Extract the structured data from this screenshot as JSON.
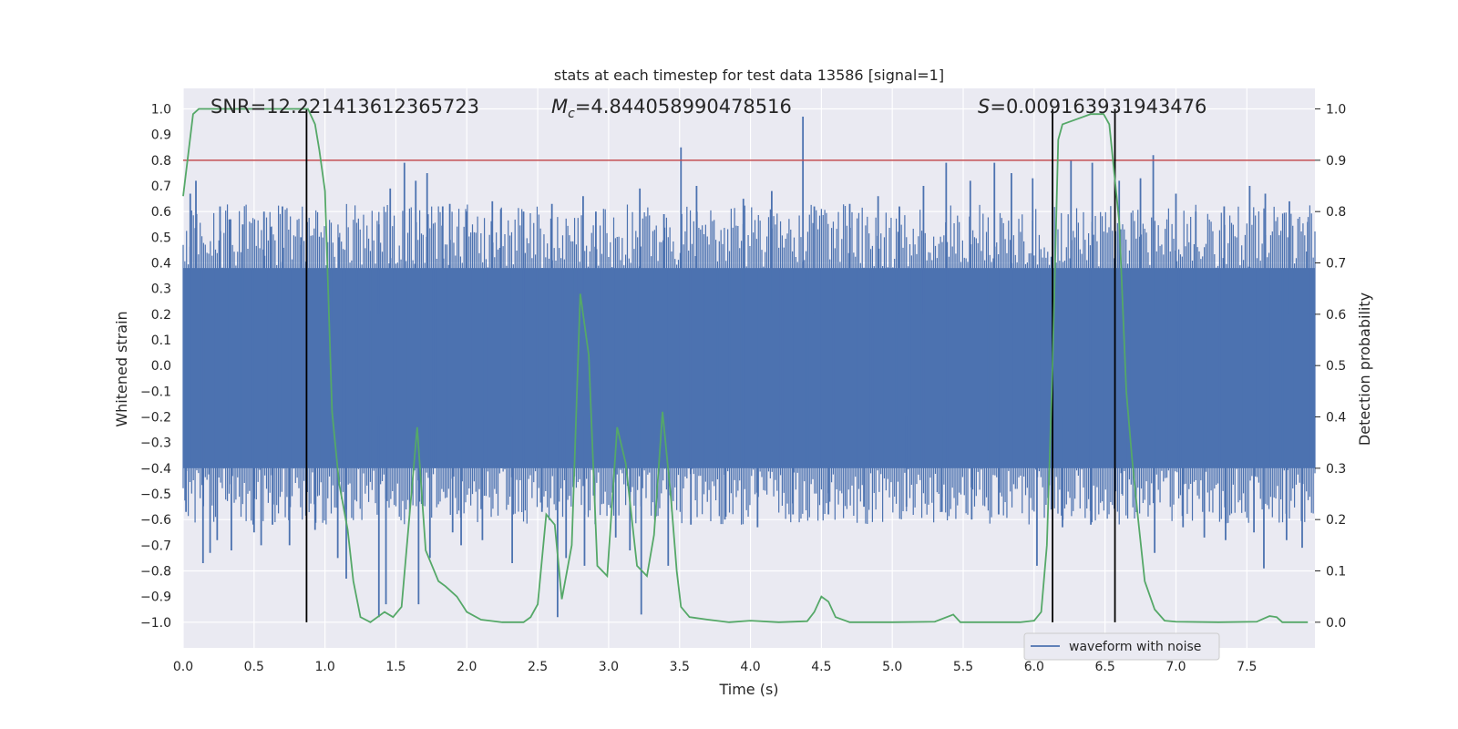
{
  "chart_data": {
    "type": "line",
    "title": "stats at each timestep for test data 13586 [signal=1]",
    "xlabel": "Time (s)",
    "ylabel": "Whitened strain",
    "y2label": "Detection probability",
    "xlim": [
      0.0,
      7.98
    ],
    "ylim": [
      -1.1,
      1.08
    ],
    "y2lim": [
      -0.05,
      1.04
    ],
    "xticks": [
      "0.0",
      "0.5",
      "1.0",
      "1.5",
      "2.0",
      "2.5",
      "3.0",
      "3.5",
      "4.0",
      "4.5",
      "5.0",
      "5.5",
      "6.0",
      "6.5",
      "7.0",
      "7.5"
    ],
    "yticks": [
      "1.0",
      "0.9",
      "0.8",
      "0.7",
      "0.6",
      "0.5",
      "0.4",
      "0.3",
      "0.2",
      "0.1",
      "0.0",
      "-0.1",
      "-0.2",
      "-0.3",
      "-0.4",
      "-0.5",
      "-0.6",
      "-0.7",
      "-0.8",
      "-0.9",
      "-1.0"
    ],
    "y2ticks": [
      "1.0",
      "0.9",
      "0.8",
      "0.7",
      "0.6",
      "0.5",
      "0.4",
      "0.3",
      "0.2",
      "0.1",
      "0.0"
    ],
    "grid": true,
    "legend_position": "lower-right",
    "annotations": {
      "snr": "SNR=12.221413612365723",
      "mc_prefix": "M",
      "mc_sub": "c",
      "mc_value": "=4.844058990478516",
      "s_prefix": "S",
      "s_value": "=0.009163931943476"
    },
    "threshold": {
      "value": 0.9,
      "axis": "right",
      "color": "#c44e52"
    },
    "vertical_lines": [
      0.87,
      6.13,
      6.57
    ],
    "colors": {
      "waveform": "#4c72b0",
      "probability": "#55a868",
      "threshold": "#c44e52",
      "background": "#eaeaf2",
      "vlines": "#000000"
    },
    "series": [
      {
        "name": "waveform with noise",
        "axis": "left",
        "kind": "noise_band",
        "core_envelope": [
          -0.4,
          0.38
        ],
        "spikes_upper": [
          [
            0.05,
            0.67
          ],
          [
            0.09,
            0.72
          ],
          [
            0.26,
            0.62
          ],
          [
            0.33,
            0.57
          ],
          [
            0.42,
            0.55
          ],
          [
            0.57,
            0.6
          ],
          [
            0.62,
            0.54
          ],
          [
            0.7,
            0.62
          ],
          [
            0.83,
            0.5
          ],
          [
            1.1,
            0.5
          ],
          [
            1.38,
            0.55
          ],
          [
            1.46,
            0.69
          ],
          [
            1.56,
            0.79
          ],
          [
            1.64,
            0.72
          ],
          [
            1.72,
            0.75
          ],
          [
            1.83,
            0.62
          ],
          [
            1.88,
            0.63
          ],
          [
            2.0,
            0.6
          ],
          [
            2.18,
            0.64
          ],
          [
            2.24,
            0.61
          ],
          [
            2.4,
            0.6
          ],
          [
            2.6,
            0.63
          ],
          [
            2.82,
            0.66
          ],
          [
            2.91,
            0.6
          ],
          [
            3.22,
            0.69
          ],
          [
            3.39,
            0.59
          ],
          [
            3.51,
            0.85
          ],
          [
            3.62,
            0.7
          ],
          [
            3.95,
            0.65
          ],
          [
            4.15,
            0.68
          ],
          [
            4.37,
            0.97
          ],
          [
            4.45,
            0.62
          ],
          [
            4.7,
            0.63
          ],
          [
            4.9,
            0.66
          ],
          [
            5.05,
            0.62
          ],
          [
            5.22,
            0.7
          ],
          [
            5.38,
            0.79
          ],
          [
            5.55,
            0.72
          ],
          [
            5.72,
            0.79
          ],
          [
            5.84,
            0.75
          ],
          [
            5.99,
            0.73
          ],
          [
            6.13,
            0.78
          ],
          [
            6.26,
            0.8
          ],
          [
            6.41,
            0.79
          ],
          [
            6.6,
            0.72
          ],
          [
            6.75,
            0.73
          ],
          [
            6.84,
            0.82
          ],
          [
            7.0,
            0.67
          ],
          [
            7.14,
            0.6
          ],
          [
            7.34,
            0.62
          ],
          [
            7.52,
            0.7
          ],
          [
            7.63,
            0.67
          ],
          [
            7.8,
            0.64
          ],
          [
            7.93,
            0.56
          ]
        ],
        "spikes_lower": [
          [
            0.02,
            -0.57
          ],
          [
            0.14,
            -0.77
          ],
          [
            0.19,
            -0.73
          ],
          [
            0.24,
            -0.68
          ],
          [
            0.34,
            -0.72
          ],
          [
            0.5,
            -0.65
          ],
          [
            0.55,
            -0.7
          ],
          [
            0.63,
            -0.62
          ],
          [
            0.75,
            -0.7
          ],
          [
            0.93,
            -0.64
          ],
          [
            1.09,
            -0.75
          ],
          [
            1.15,
            -0.83
          ],
          [
            1.38,
            -0.98
          ],
          [
            1.43,
            -0.93
          ],
          [
            1.66,
            -0.93
          ],
          [
            1.74,
            -0.75
          ],
          [
            1.9,
            -0.65
          ],
          [
            1.96,
            -0.7
          ],
          [
            2.11,
            -0.68
          ],
          [
            2.32,
            -0.77
          ],
          [
            2.53,
            -0.57
          ],
          [
            2.64,
            -0.98
          ],
          [
            2.7,
            -0.75
          ],
          [
            2.83,
            -0.78
          ],
          [
            3.05,
            -0.67
          ],
          [
            3.15,
            -0.72
          ],
          [
            3.23,
            -0.97
          ],
          [
            3.42,
            -0.78
          ],
          [
            3.58,
            -0.62
          ],
          [
            3.82,
            -0.6
          ],
          [
            4.05,
            -0.63
          ],
          [
            4.3,
            -0.58
          ],
          [
            4.55,
            -0.58
          ],
          [
            4.8,
            -0.55
          ],
          [
            5.1,
            -0.55
          ],
          [
            5.35,
            -0.57
          ],
          [
            5.56,
            -0.6
          ],
          [
            5.75,
            -0.58
          ],
          [
            6.02,
            -0.78
          ],
          [
            6.2,
            -0.63
          ],
          [
            6.4,
            -0.62
          ],
          [
            6.62,
            -0.5
          ],
          [
            6.85,
            -0.73
          ],
          [
            7.05,
            -0.63
          ],
          [
            7.2,
            -0.67
          ],
          [
            7.35,
            -0.68
          ],
          [
            7.55,
            -0.65
          ],
          [
            7.62,
            -0.79
          ],
          [
            7.78,
            -0.68
          ],
          [
            7.89,
            -0.71
          ]
        ]
      },
      {
        "name": "",
        "axis": "right",
        "kind": "line",
        "x": [
          0.0,
          0.07,
          0.11,
          0.88,
          0.93,
          0.96,
          1.0,
          1.05,
          1.1,
          1.16,
          1.2,
          1.25,
          1.32,
          1.42,
          1.48,
          1.54,
          1.65,
          1.71,
          1.8,
          1.85,
          1.93,
          2.0,
          2.1,
          2.25,
          2.4,
          2.45,
          2.5,
          2.56,
          2.62,
          2.67,
          2.74,
          2.8,
          2.86,
          2.92,
          2.99,
          3.06,
          3.12,
          3.2,
          3.27,
          3.32,
          3.38,
          3.44,
          3.48,
          3.51,
          3.57,
          3.7,
          3.85,
          4.0,
          4.2,
          4.4,
          4.45,
          4.5,
          4.55,
          4.6,
          4.7,
          5.0,
          5.3,
          5.43,
          5.48,
          5.6,
          5.9,
          6.0,
          6.05,
          6.09,
          6.13,
          6.17,
          6.2,
          6.3,
          6.4,
          6.49,
          6.53,
          6.6,
          6.65,
          6.69,
          6.73,
          6.78,
          6.85,
          6.92,
          7.0,
          7.3,
          7.57,
          7.61,
          7.66,
          7.71,
          7.75,
          7.93
        ],
        "y": [
          0.83,
          0.99,
          1.0,
          1.0,
          0.97,
          0.92,
          0.84,
          0.41,
          0.27,
          0.18,
          0.08,
          0.01,
          0.0,
          0.02,
          0.01,
          0.03,
          0.38,
          0.14,
          0.08,
          0.07,
          0.05,
          0.02,
          0.005,
          0.0,
          0.0,
          0.01,
          0.035,
          0.21,
          0.19,
          0.045,
          0.15,
          0.64,
          0.52,
          0.11,
          0.09,
          0.38,
          0.31,
          0.11,
          0.09,
          0.17,
          0.41,
          0.24,
          0.1,
          0.03,
          0.01,
          0.005,
          0.0,
          0.003,
          0.0,
          0.002,
          0.02,
          0.05,
          0.04,
          0.01,
          0.0,
          0.0,
          0.001,
          0.015,
          0.0,
          0.0,
          0.0,
          0.003,
          0.02,
          0.15,
          0.5,
          0.94,
          0.97,
          0.98,
          0.99,
          0.99,
          0.97,
          0.78,
          0.45,
          0.32,
          0.21,
          0.08,
          0.025,
          0.003,
          0.001,
          0.0,
          0.001,
          0.006,
          0.012,
          0.01,
          0.0,
          0.0
        ]
      }
    ]
  },
  "legend": {
    "label": "waveform with noise"
  }
}
